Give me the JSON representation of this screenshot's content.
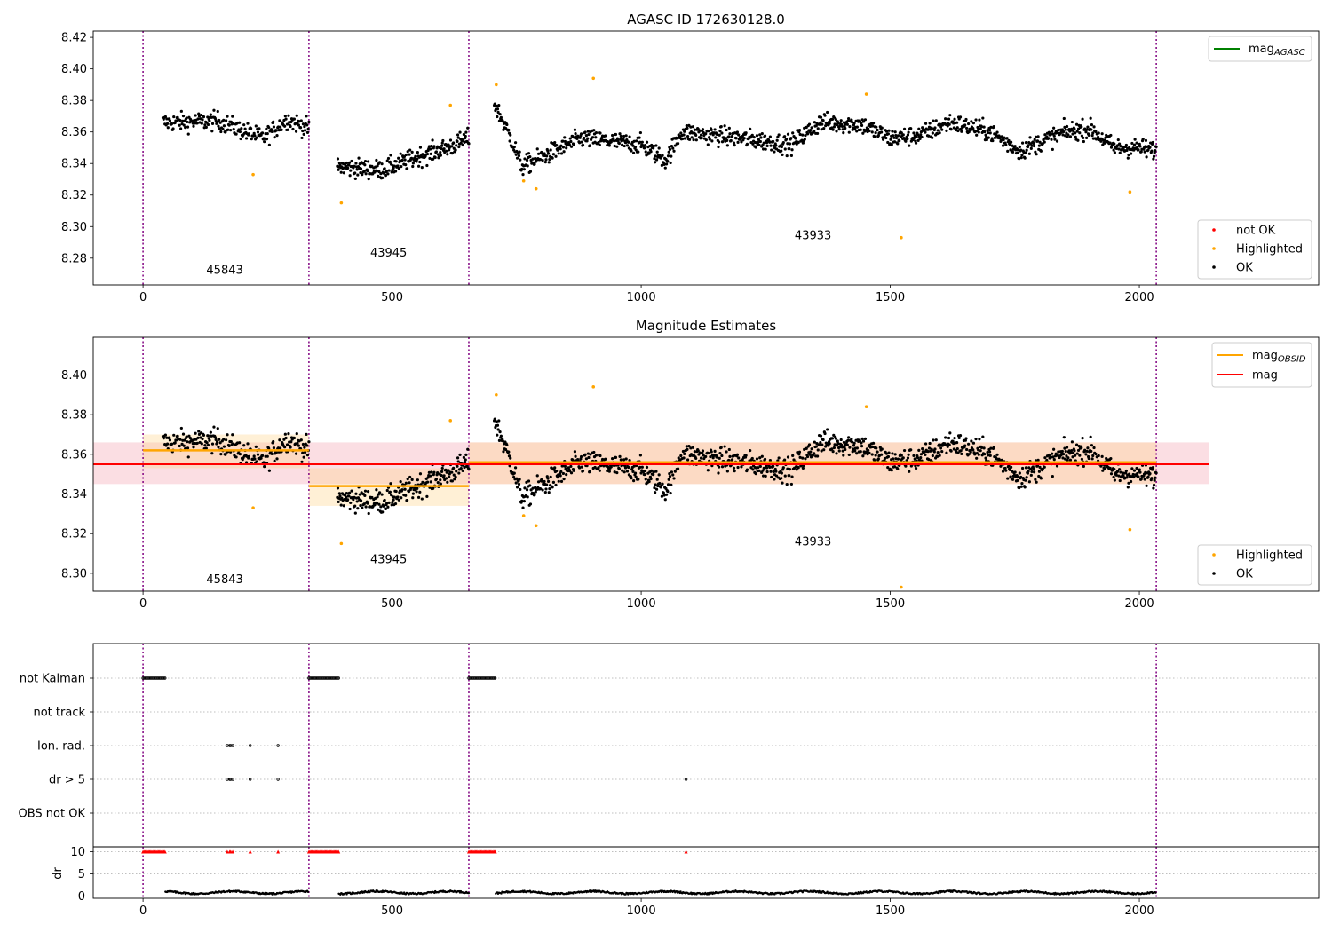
{
  "chart_data": [
    {
      "type": "scatter",
      "title": "AGASC ID 172630128.0",
      "xlim": [
        -100,
        2360
      ],
      "ylim": [
        8.263,
        8.424
      ],
      "xticks": [
        0,
        500,
        1000,
        1500,
        2000
      ],
      "xtick_labels": [
        "0",
        "500",
        "1000",
        "1500",
        "2000"
      ],
      "yticks": [
        8.28,
        8.3,
        8.32,
        8.34,
        8.36,
        8.38,
        8.4,
        8.42
      ],
      "ytick_labels": [
        "8.28",
        "8.30",
        "8.32",
        "8.34",
        "8.36",
        "8.38",
        "8.40",
        "8.42"
      ],
      "grid": false,
      "obsid_boundaries": [
        0,
        333,
        654,
        2034
      ],
      "annotations": [
        {
          "text": "45843",
          "x": 164,
          "y": 8.27
        },
        {
          "text": "43945",
          "x": 493,
          "y": 8.281
        },
        {
          "text": "43933",
          "x": 1345,
          "y": 8.292
        }
      ],
      "legend_lines": [
        {
          "label": "mag",
          "sub": "AGASC",
          "color": "#008000"
        }
      ],
      "legend_points": [
        {
          "label": "not OK",
          "color": "#ff0000"
        },
        {
          "label": "Highlighted",
          "color": "#ffa500"
        },
        {
          "label": "OK",
          "color": "#000000"
        }
      ],
      "series": [
        {
          "name": "OK",
          "color": "#000000",
          "segments": [
            {
              "x_start": 40,
              "x_end": 333,
              "n": 230,
              "trend": [
                [
                  40,
                  8.366
                ],
                [
                  150,
                  8.367
                ],
                [
                  240,
                  8.356
                ],
                [
                  290,
                  8.368
                ],
                [
                  333,
                  8.362
                ]
              ],
              "noise": 0.006
            },
            {
              "x_start": 390,
              "x_end": 654,
              "n": 240,
              "trend": [
                [
                  390,
                  8.338
                ],
                [
                  480,
                  8.336
                ],
                [
                  560,
                  8.345
                ],
                [
                  620,
                  8.351
                ],
                [
                  654,
                  8.356
                ]
              ],
              "noise": 0.006
            },
            {
              "x_start": 705,
              "x_end": 2034,
              "n": 1150,
              "trend": [
                [
                  705,
                  8.378
                ],
                [
                  740,
                  8.355
                ],
                [
                  760,
                  8.338
                ],
                [
                  800,
                  8.344
                ],
                [
                  880,
                  8.356
                ],
                [
                  1000,
                  8.352
                ],
                [
                  1050,
                  8.342
                ],
                [
                  1080,
                  8.36
                ],
                [
                  1200,
                  8.356
                ],
                [
                  1300,
                  8.352
                ],
                [
                  1360,
                  8.366
                ],
                [
                  1440,
                  8.365
                ],
                [
                  1500,
                  8.356
                ],
                [
                  1560,
                  8.358
                ],
                [
                  1620,
                  8.366
                ],
                [
                  1700,
                  8.36
                ],
                [
                  1760,
                  8.348
                ],
                [
                  1850,
                  8.36
                ],
                [
                  1900,
                  8.362
                ],
                [
                  1950,
                  8.35
                ],
                [
                  2000,
                  8.35
                ],
                [
                  2034,
                  8.348
                ]
              ],
              "noise": 0.006
            }
          ]
        },
        {
          "name": "Highlighted",
          "color": "#ffa500",
          "points": [
            [
              221,
              8.333
            ],
            [
              398,
              8.315
            ],
            [
              617,
              8.377
            ],
            [
              709,
              8.39
            ],
            [
              764,
              8.329
            ],
            [
              789,
              8.324
            ],
            [
              904,
              8.394
            ],
            [
              1452,
              8.384
            ],
            [
              1522,
              8.293
            ],
            [
              1981,
              8.322
            ]
          ]
        }
      ]
    },
    {
      "type": "scatter",
      "title": "Magnitude Estimates",
      "xlim": [
        -100,
        2360
      ],
      "ylim": [
        8.291,
        8.419
      ],
      "xticks": [
        0,
        500,
        1000,
        1500,
        2000
      ],
      "xtick_labels": [
        "0",
        "500",
        "1000",
        "1500",
        "2000"
      ],
      "yticks": [
        8.3,
        8.32,
        8.34,
        8.36,
        8.38,
        8.4
      ],
      "ytick_labels": [
        "8.30",
        "8.32",
        "8.34",
        "8.36",
        "8.38",
        "8.40"
      ],
      "grid": false,
      "obsid_boundaries": [
        0,
        333,
        654,
        2034
      ],
      "annotations": [
        {
          "text": "45843",
          "x": 164,
          "y": 8.295
        },
        {
          "text": "43945",
          "x": 493,
          "y": 8.305
        },
        {
          "text": "43933",
          "x": 1345,
          "y": 8.314
        }
      ],
      "mag": {
        "value": 8.355,
        "band": [
          8.345,
          8.366
        ],
        "x_range": [
          -100,
          2140
        ],
        "color": "#ff0000",
        "band_color": "#f7b6c0"
      },
      "obsid_mags": [
        {
          "x_range": [
            0,
            333
          ],
          "value": 8.362,
          "band": [
            8.353,
            8.37
          ]
        },
        {
          "x_range": [
            333,
            654
          ],
          "value": 8.344,
          "band": [
            8.334,
            8.353
          ]
        },
        {
          "x_range": [
            654,
            2034
          ],
          "value": 8.356,
          "band": [
            8.345,
            8.366
          ]
        }
      ],
      "obsid_color": "#ffa500",
      "legend_lines": [
        {
          "label": "mag",
          "sub": "OBSID",
          "color": "#ffa500"
        },
        {
          "label": "mag",
          "sub": "",
          "color": "#ff0000"
        }
      ],
      "legend_points": [
        {
          "label": "Highlighted",
          "color": "#ffa500"
        },
        {
          "label": "OK",
          "color": "#000000"
        }
      ]
    },
    {
      "type": "scatter",
      "xlim": [
        -100,
        2360
      ],
      "xticks": [
        0,
        500,
        1000,
        1500,
        2000
      ],
      "xtick_labels": [
        "0",
        "500",
        "1000",
        "1500",
        "2000"
      ],
      "obsid_boundaries": [
        0,
        333,
        654,
        2034
      ],
      "flags": [
        "not Kalman",
        "not track",
        "Ion. rad.",
        "dr > 5",
        "OBS not OK"
      ],
      "flag_points": {
        "not Kalman": [
          [
            0,
            45
          ],
          [
            333,
            393
          ],
          [
            654,
            708
          ]
        ],
        "not track": [],
        "Ion. rad.": [
          169,
          174,
          176,
          180,
          215,
          271
        ],
        "dr > 5": [
          169,
          174,
          176,
          180,
          215,
          271,
          1090
        ],
        "OBS not OK": []
      },
      "dr": {
        "ylabel": "dr",
        "ylim": [
          -0.5,
          10.5
        ],
        "yticks": [
          0,
          5,
          10
        ],
        "ytick_labels": [
          "0",
          "5",
          "10"
        ],
        "clip_value": 10,
        "clipped_ranges": [
          [
            0,
            45
          ],
          [
            333,
            393
          ],
          [
            654,
            708
          ]
        ],
        "clipped_points": [
          169,
          174,
          176,
          180,
          215,
          271,
          1090
        ],
        "segments": [
          [
            45,
            333
          ],
          [
            393,
            654
          ],
          [
            708,
            2034
          ]
        ],
        "level": 1.0
      }
    }
  ]
}
